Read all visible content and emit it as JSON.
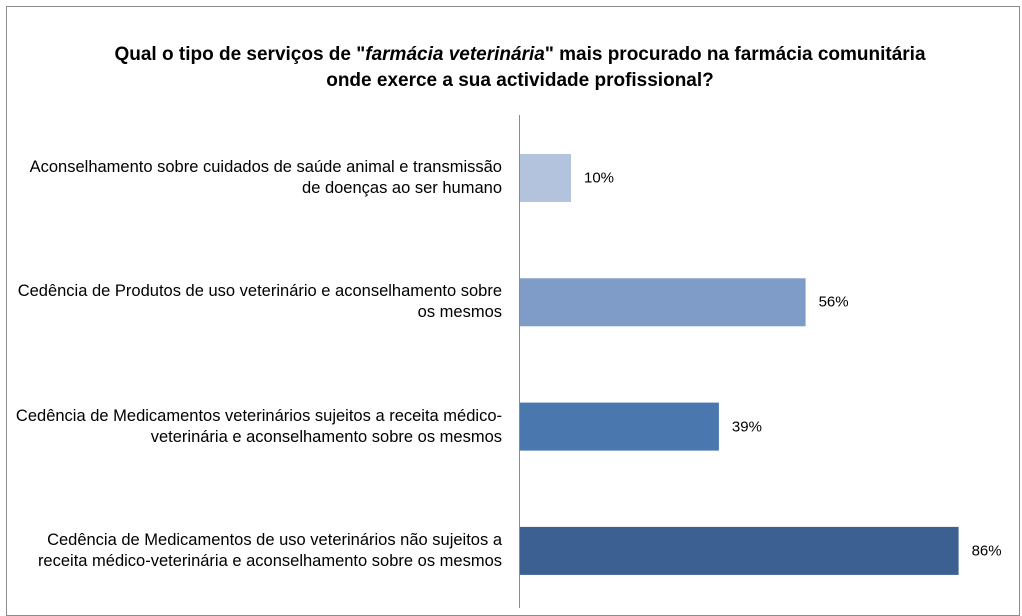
{
  "chart_data": {
    "type": "bar",
    "orientation": "horizontal",
    "title": [
      "Qual o tipo de serviços de \"",
      "farmácia veterinária",
      "\" mais procurado na farmácia comunitária onde exerce a sua actividade profissional?"
    ],
    "categories": [
      "Aconselhamento sobre cuidados de saúde animal e transmissão de doenças ao ser humano",
      "Cedência de Produtos de uso veterinário e aconselhamento sobre os mesmos",
      "Cedência de Medicamentos veterinários sujeitos a receita médico-veterinária e aconselhamento sobre os mesmos",
      "Cedência de Medicamentos de uso veterinários não sujeitos a receita médico-veterinária e aconselhamento sobre os mesmos"
    ],
    "values": [
      10,
      56,
      39,
      86
    ],
    "value_labels": [
      "10%",
      "56%",
      "39%",
      "86%"
    ],
    "colors": [
      "#b4c3dd",
      "#7f9cc8",
      "#4a77ad",
      "#3b6091"
    ]
  }
}
